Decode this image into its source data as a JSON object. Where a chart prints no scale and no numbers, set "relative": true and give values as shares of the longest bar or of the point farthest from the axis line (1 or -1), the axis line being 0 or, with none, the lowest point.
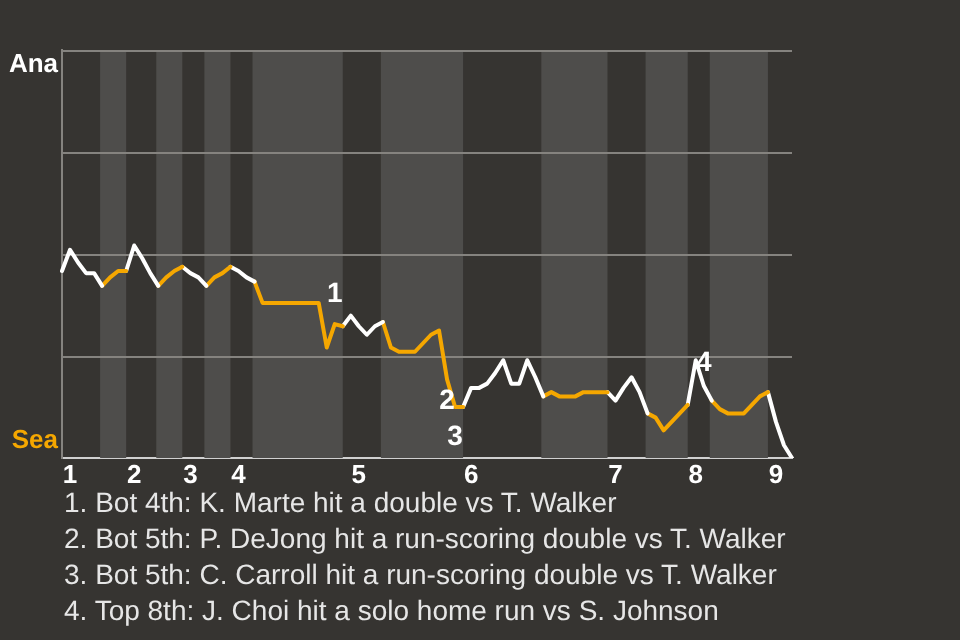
{
  "chart_data": {
    "type": "line",
    "relative": true,
    "categories": [
      null,
      "1",
      null,
      null,
      null,
      null,
      null,
      null,
      null,
      "2",
      null,
      null,
      null,
      null,
      null,
      null,
      "3",
      null,
      null,
      null,
      null,
      null,
      "4",
      null,
      null,
      null,
      null,
      null,
      null,
      null,
      null,
      null,
      null,
      null,
      null,
      null,
      null,
      "5",
      null,
      null,
      null,
      null,
      null,
      null,
      null,
      null,
      null,
      null,
      null,
      null,
      null,
      "6",
      null,
      null,
      null,
      null,
      null,
      null,
      null,
      null,
      null,
      null,
      null,
      null,
      null,
      null,
      null,
      null,
      null,
      "7",
      null,
      null,
      null,
      null,
      null,
      null,
      null,
      null,
      null,
      "8",
      null,
      null,
      null,
      null,
      null,
      null,
      null,
      null,
      null,
      "9",
      null,
      null
    ],
    "ref_lines": [
      {
        "axis": "y",
        "value": 0.48,
        "color": "#85837f"
      },
      {
        "axis": "y",
        "value": 0.96,
        "color": "#85837f"
      },
      {
        "axis": "y",
        "value": 1.44,
        "color": "#85837f"
      },
      {
        "axis": "y",
        "value": 1.92,
        "color": "#85837f"
      }
    ],
    "marker": "none",
    "series": [
      {
        "color": "#ffffff",
        "values": [
          0.88,
          0.98,
          0.92,
          0.87,
          0.87,
          0.81,
          null,
          null,
          null,
          null,
          null,
          null,
          null,
          null,
          null,
          null,
          null,
          null,
          null,
          null,
          null,
          null,
          null,
          null,
          null,
          null,
          null,
          null,
          null,
          null,
          null,
          null,
          null,
          null,
          null,
          null,
          null,
          null,
          null,
          null,
          null,
          null,
          null,
          null,
          null,
          null,
          null,
          null,
          null,
          null,
          null,
          null,
          null,
          null,
          null,
          null,
          null,
          null,
          null,
          null,
          null,
          null,
          null,
          null,
          null,
          null,
          null,
          null,
          null,
          null,
          null,
          null,
          null,
          null,
          null,
          null,
          null,
          null,
          null,
          null,
          null,
          null,
          null,
          null,
          null,
          null,
          null,
          null,
          null,
          null,
          null,
          null
        ]
      },
      {
        "color": "#f5a700",
        "values": [
          null,
          null,
          null,
          null,
          null,
          0.81,
          0.85,
          0.88,
          0.88,
          null,
          null,
          null,
          null,
          null,
          null,
          null,
          null,
          null,
          null,
          null,
          null,
          null,
          null,
          null,
          null,
          null,
          null,
          null,
          null,
          null,
          null,
          null,
          null,
          null,
          null,
          null,
          null,
          null,
          null,
          null,
          null,
          null,
          null,
          null,
          null,
          null,
          null,
          null,
          null,
          null,
          null,
          null,
          null,
          null,
          null,
          null,
          null,
          null,
          null,
          null,
          null,
          null,
          null,
          null,
          null,
          null,
          null,
          null,
          null,
          null,
          null,
          null,
          null,
          null,
          null,
          null,
          null,
          null,
          null,
          null,
          null,
          null,
          null,
          null,
          null,
          null,
          null,
          null,
          null,
          null,
          null,
          null
        ]
      },
      {
        "color": "#ffffff",
        "values": [
          null,
          null,
          null,
          null,
          null,
          null,
          null,
          null,
          0.88,
          1,
          0.94,
          0.87,
          0.81,
          null,
          null,
          null,
          null,
          null,
          null,
          null,
          null,
          null,
          null,
          null,
          null,
          null,
          null,
          null,
          null,
          null,
          null,
          null,
          null,
          null,
          null,
          null,
          null,
          null,
          null,
          null,
          null,
          null,
          null,
          null,
          null,
          null,
          null,
          null,
          null,
          null,
          null,
          null,
          null,
          null,
          null,
          null,
          null,
          null,
          null,
          null,
          null,
          null,
          null,
          null,
          null,
          null,
          null,
          null,
          null,
          null,
          null,
          null,
          null,
          null,
          null,
          null,
          null,
          null,
          null,
          null,
          null,
          null,
          null,
          null,
          null,
          null,
          null,
          null,
          null,
          null,
          null,
          null
        ]
      },
      {
        "color": "#f5a700",
        "values": [
          null,
          null,
          null,
          null,
          null,
          null,
          null,
          null,
          null,
          null,
          null,
          null,
          0.81,
          0.85,
          0.88,
          0.9,
          null,
          null,
          null,
          null,
          null,
          null,
          null,
          null,
          null,
          null,
          null,
          null,
          null,
          null,
          null,
          null,
          null,
          null,
          null,
          null,
          null,
          null,
          null,
          null,
          null,
          null,
          null,
          null,
          null,
          null,
          null,
          null,
          null,
          null,
          null,
          null,
          null,
          null,
          null,
          null,
          null,
          null,
          null,
          null,
          null,
          null,
          null,
          null,
          null,
          null,
          null,
          null,
          null,
          null,
          null,
          null,
          null,
          null,
          null,
          null,
          null,
          null,
          null,
          null,
          null,
          null,
          null,
          null,
          null,
          null,
          null,
          null,
          null,
          null,
          null,
          null
        ]
      },
      {
        "color": "#ffffff",
        "values": [
          null,
          null,
          null,
          null,
          null,
          null,
          null,
          null,
          null,
          null,
          null,
          null,
          null,
          null,
          null,
          0.9,
          0.87,
          0.85,
          0.81,
          null,
          null,
          null,
          null,
          null,
          null,
          null,
          null,
          null,
          null,
          null,
          null,
          null,
          null,
          null,
          null,
          null,
          null,
          null,
          null,
          null,
          null,
          null,
          null,
          null,
          null,
          null,
          null,
          null,
          null,
          null,
          null,
          null,
          null,
          null,
          null,
          null,
          null,
          null,
          null,
          null,
          null,
          null,
          null,
          null,
          null,
          null,
          null,
          null,
          null,
          null,
          null,
          null,
          null,
          null,
          null,
          null,
          null,
          null,
          null,
          null,
          null,
          null,
          null,
          null,
          null,
          null,
          null,
          null,
          null,
          null,
          null,
          null
        ]
      },
      {
        "color": "#f5a700",
        "values": [
          null,
          null,
          null,
          null,
          null,
          null,
          null,
          null,
          null,
          null,
          null,
          null,
          null,
          null,
          null,
          null,
          null,
          null,
          0.81,
          0.85,
          0.87,
          0.9,
          null,
          null,
          null,
          null,
          null,
          null,
          null,
          null,
          null,
          null,
          null,
          null,
          null,
          null,
          null,
          null,
          null,
          null,
          null,
          null,
          null,
          null,
          null,
          null,
          null,
          null,
          null,
          null,
          null,
          null,
          null,
          null,
          null,
          null,
          null,
          null,
          null,
          null,
          null,
          null,
          null,
          null,
          null,
          null,
          null,
          null,
          null,
          null,
          null,
          null,
          null,
          null,
          null,
          null,
          null,
          null,
          null,
          null,
          null,
          null,
          null,
          null,
          null,
          null,
          null,
          null,
          null,
          null,
          null,
          null
        ]
      },
      {
        "color": "#ffffff",
        "values": [
          null,
          null,
          null,
          null,
          null,
          null,
          null,
          null,
          null,
          null,
          null,
          null,
          null,
          null,
          null,
          null,
          null,
          null,
          null,
          null,
          null,
          0.9,
          0.88,
          0.85,
          0.83,
          null,
          null,
          null,
          null,
          null,
          null,
          null,
          null,
          null,
          null,
          null,
          null,
          null,
          null,
          null,
          null,
          null,
          null,
          null,
          null,
          null,
          null,
          null,
          null,
          null,
          null,
          null,
          null,
          null,
          null,
          null,
          null,
          null,
          null,
          null,
          null,
          null,
          null,
          null,
          null,
          null,
          null,
          null,
          null,
          null,
          null,
          null,
          null,
          null,
          null,
          null,
          null,
          null,
          null,
          null,
          null,
          null,
          null,
          null,
          null,
          null,
          null,
          null,
          null,
          null,
          null,
          null
        ]
      },
      {
        "color": "#f5a700",
        "values": [
          null,
          null,
          null,
          null,
          null,
          null,
          null,
          null,
          null,
          null,
          null,
          null,
          null,
          null,
          null,
          null,
          null,
          null,
          null,
          null,
          null,
          null,
          null,
          null,
          0.83,
          0.73,
          0.73,
          0.73,
          0.73,
          0.73,
          0.73,
          0.73,
          0.73,
          0.52,
          0.63,
          0.62,
          null,
          null,
          null,
          null,
          null,
          null,
          null,
          null,
          null,
          null,
          null,
          null,
          null,
          null,
          null,
          null,
          null,
          null,
          null,
          null,
          null,
          null,
          null,
          null,
          null,
          null,
          null,
          null,
          null,
          null,
          null,
          null,
          null,
          null,
          null,
          null,
          null,
          null,
          null,
          null,
          null,
          null,
          null,
          null,
          null,
          null,
          null,
          null,
          null,
          null,
          null,
          null,
          null,
          null,
          null,
          null
        ]
      },
      {
        "color": "#ffffff",
        "values": [
          null,
          null,
          null,
          null,
          null,
          null,
          null,
          null,
          null,
          null,
          null,
          null,
          null,
          null,
          null,
          null,
          null,
          null,
          null,
          null,
          null,
          null,
          null,
          null,
          null,
          null,
          null,
          null,
          null,
          null,
          null,
          null,
          null,
          null,
          null,
          0.62,
          0.67,
          0.62,
          0.58,
          0.62,
          0.64,
          null,
          null,
          null,
          null,
          null,
          null,
          null,
          null,
          null,
          null,
          null,
          null,
          null,
          null,
          null,
          null,
          null,
          null,
          null,
          null,
          null,
          null,
          null,
          null,
          null,
          null,
          null,
          null,
          null,
          null,
          null,
          null,
          null,
          null,
          null,
          null,
          null,
          null,
          null,
          null,
          null,
          null,
          null,
          null,
          null,
          null,
          null,
          null,
          null,
          null,
          null
        ]
      },
      {
        "color": "#f5a700",
        "values": [
          null,
          null,
          null,
          null,
          null,
          null,
          null,
          null,
          null,
          null,
          null,
          null,
          null,
          null,
          null,
          null,
          null,
          null,
          null,
          null,
          null,
          null,
          null,
          null,
          null,
          null,
          null,
          null,
          null,
          null,
          null,
          null,
          null,
          null,
          null,
          null,
          null,
          null,
          null,
          null,
          0.64,
          0.52,
          0.5,
          0.5,
          0.5,
          0.54,
          0.58,
          0.6,
          0.37,
          0.24,
          0.24,
          null,
          null,
          null,
          null,
          null,
          null,
          null,
          null,
          null,
          null,
          null,
          null,
          null,
          null,
          null,
          null,
          null,
          null,
          null,
          null,
          null,
          null,
          null,
          null,
          null,
          null,
          null,
          null,
          null,
          null,
          null,
          null,
          null,
          null,
          null,
          null,
          null,
          null,
          null,
          null,
          null
        ]
      },
      {
        "color": "#ffffff",
        "values": [
          null,
          null,
          null,
          null,
          null,
          null,
          null,
          null,
          null,
          null,
          null,
          null,
          null,
          null,
          null,
          null,
          null,
          null,
          null,
          null,
          null,
          null,
          null,
          null,
          null,
          null,
          null,
          null,
          null,
          null,
          null,
          null,
          null,
          null,
          null,
          null,
          null,
          null,
          null,
          null,
          null,
          null,
          null,
          null,
          null,
          null,
          null,
          null,
          null,
          null,
          0.24,
          0.33,
          0.33,
          0.35,
          0.4,
          0.46,
          0.35,
          0.35,
          0.46,
          0.38,
          0.29,
          null,
          null,
          null,
          null,
          null,
          null,
          null,
          null,
          null,
          null,
          null,
          null,
          null,
          null,
          null,
          null,
          null,
          null,
          null,
          null,
          null,
          null,
          null,
          null,
          null,
          null,
          null,
          null,
          null,
          null,
          null
        ]
      },
      {
        "color": "#f5a700",
        "values": [
          null,
          null,
          null,
          null,
          null,
          null,
          null,
          null,
          null,
          null,
          null,
          null,
          null,
          null,
          null,
          null,
          null,
          null,
          null,
          null,
          null,
          null,
          null,
          null,
          null,
          null,
          null,
          null,
          null,
          null,
          null,
          null,
          null,
          null,
          null,
          null,
          null,
          null,
          null,
          null,
          null,
          null,
          null,
          null,
          null,
          null,
          null,
          null,
          null,
          null,
          null,
          null,
          null,
          null,
          null,
          null,
          null,
          null,
          null,
          null,
          0.29,
          0.31,
          0.29,
          0.29,
          0.29,
          0.31,
          0.31,
          0.31,
          0.31,
          null,
          null,
          null,
          null,
          null,
          null,
          null,
          null,
          null,
          null,
          null,
          null,
          null,
          null,
          null,
          null,
          null,
          null,
          null,
          null,
          null,
          null,
          null
        ]
      },
      {
        "color": "#ffffff",
        "values": [
          null,
          null,
          null,
          null,
          null,
          null,
          null,
          null,
          null,
          null,
          null,
          null,
          null,
          null,
          null,
          null,
          null,
          null,
          null,
          null,
          null,
          null,
          null,
          null,
          null,
          null,
          null,
          null,
          null,
          null,
          null,
          null,
          null,
          null,
          null,
          null,
          null,
          null,
          null,
          null,
          null,
          null,
          null,
          null,
          null,
          null,
          null,
          null,
          null,
          null,
          null,
          null,
          null,
          null,
          null,
          null,
          null,
          null,
          null,
          null,
          null,
          null,
          null,
          null,
          null,
          null,
          null,
          null,
          0.31,
          0.27,
          0.33,
          0.38,
          0.31,
          0.21,
          null,
          null,
          null,
          null,
          null,
          null,
          null,
          null,
          null,
          null,
          null,
          null,
          null,
          null,
          null,
          null,
          null,
          null
        ]
      },
      {
        "color": "#f5a700",
        "values": [
          null,
          null,
          null,
          null,
          null,
          null,
          null,
          null,
          null,
          null,
          null,
          null,
          null,
          null,
          null,
          null,
          null,
          null,
          null,
          null,
          null,
          null,
          null,
          null,
          null,
          null,
          null,
          null,
          null,
          null,
          null,
          null,
          null,
          null,
          null,
          null,
          null,
          null,
          null,
          null,
          null,
          null,
          null,
          null,
          null,
          null,
          null,
          null,
          null,
          null,
          null,
          null,
          null,
          null,
          null,
          null,
          null,
          null,
          null,
          null,
          null,
          null,
          null,
          null,
          null,
          null,
          null,
          null,
          null,
          null,
          null,
          null,
          null,
          0.21,
          0.19,
          0.13,
          0.17,
          0.21,
          0.25,
          null,
          null,
          null,
          null,
          null,
          null,
          null,
          null,
          null,
          null,
          null,
          null,
          null
        ]
      },
      {
        "color": "#ffffff",
        "values": [
          null,
          null,
          null,
          null,
          null,
          null,
          null,
          null,
          null,
          null,
          null,
          null,
          null,
          null,
          null,
          null,
          null,
          null,
          null,
          null,
          null,
          null,
          null,
          null,
          null,
          null,
          null,
          null,
          null,
          null,
          null,
          null,
          null,
          null,
          null,
          null,
          null,
          null,
          null,
          null,
          null,
          null,
          null,
          null,
          null,
          null,
          null,
          null,
          null,
          null,
          null,
          null,
          null,
          null,
          null,
          null,
          null,
          null,
          null,
          null,
          null,
          null,
          null,
          null,
          null,
          null,
          null,
          null,
          null,
          null,
          null,
          null,
          null,
          null,
          null,
          null,
          null,
          null,
          0.25,
          0.46,
          0.34,
          0.27,
          null,
          null,
          null,
          null,
          null,
          null,
          null,
          null,
          null,
          null
        ]
      },
      {
        "color": "#f5a700",
        "values": [
          null,
          null,
          null,
          null,
          null,
          null,
          null,
          null,
          null,
          null,
          null,
          null,
          null,
          null,
          null,
          null,
          null,
          null,
          null,
          null,
          null,
          null,
          null,
          null,
          null,
          null,
          null,
          null,
          null,
          null,
          null,
          null,
          null,
          null,
          null,
          null,
          null,
          null,
          null,
          null,
          null,
          null,
          null,
          null,
          null,
          null,
          null,
          null,
          null,
          null,
          null,
          null,
          null,
          null,
          null,
          null,
          null,
          null,
          null,
          null,
          null,
          null,
          null,
          null,
          null,
          null,
          null,
          null,
          null,
          null,
          null,
          null,
          null,
          null,
          null,
          null,
          null,
          null,
          null,
          null,
          null,
          0.27,
          0.23,
          0.21,
          0.21,
          0.21,
          0.25,
          0.29,
          0.31,
          null,
          null,
          null
        ]
      },
      {
        "color": "#ffffff",
        "values": [
          null,
          null,
          null,
          null,
          null,
          null,
          null,
          null,
          null,
          null,
          null,
          null,
          null,
          null,
          null,
          null,
          null,
          null,
          null,
          null,
          null,
          null,
          null,
          null,
          null,
          null,
          null,
          null,
          null,
          null,
          null,
          null,
          null,
          null,
          null,
          null,
          null,
          null,
          null,
          null,
          null,
          null,
          null,
          null,
          null,
          null,
          null,
          null,
          null,
          null,
          null,
          null,
          null,
          null,
          null,
          null,
          null,
          null,
          null,
          null,
          null,
          null,
          null,
          null,
          null,
          null,
          null,
          null,
          null,
          null,
          null,
          null,
          null,
          null,
          null,
          null,
          null,
          null,
          null,
          null,
          null,
          null,
          null,
          null,
          null,
          null,
          null,
          null,
          0.31,
          0.17,
          0.06,
          0
        ]
      }
    ],
    "annotations": [
      "Ana",
      "Sea",
      {
        "text": "1",
        "y": 0.63
      },
      {
        "text": "2",
        "y": 0.37
      },
      {
        "text": "3",
        "y": 0.24
      },
      {
        "text": "4",
        "y": 0.34
      },
      "1. Bot 4th: K. Marte hit a double vs T. Walker",
      "2. Bot 5th: P. DeJong hit a run-scoring double vs T. Walker",
      "3. Bot 5th: C. Carroll hit a run-scoring double vs T. Walker",
      "4. Top 8th: J. Choi hit a solo home run vs S. Johnson"
    ]
  }
}
